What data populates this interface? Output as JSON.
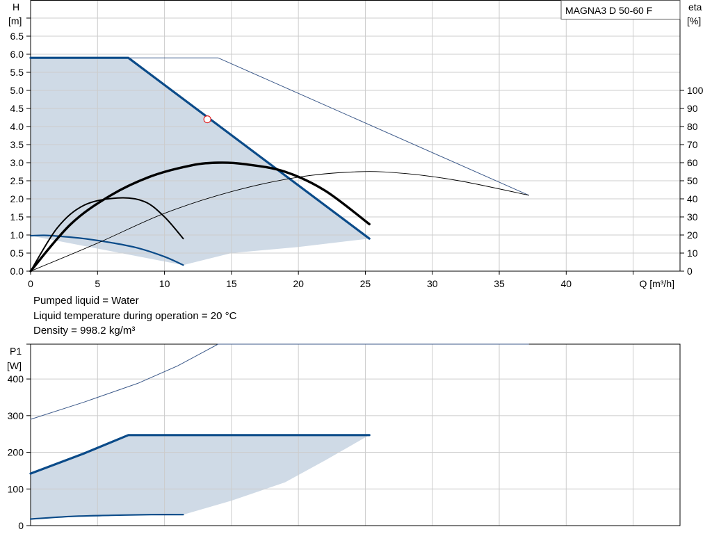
{
  "colors": {
    "region": "#cfdae6",
    "blue": "#0b4b89",
    "black": "#000000",
    "grid": "#cccccc",
    "thin": "#3d5a8a",
    "marker": "#e02020"
  },
  "chart_data": [
    {
      "type": "line",
      "title": "MAGNA3 D 50-60 F",
      "xlabel": "Q [m³/h]",
      "ylabel_lines": [
        "H",
        "[m]"
      ],
      "y2label_lines": [
        "eta",
        "[%]"
      ],
      "xlim": [
        0,
        48.5
      ],
      "ylim": [
        0,
        7.5
      ],
      "y2lim": [
        0,
        150
      ],
      "xticks": [
        0,
        5,
        10,
        15,
        20,
        25,
        30,
        35,
        40
      ],
      "yticks": [
        0.0,
        0.5,
        1.0,
        1.5,
        2.0,
        2.5,
        3.0,
        3.5,
        4.0,
        4.5,
        5.0,
        5.5,
        6.0,
        6.5
      ],
      "y2ticks": [
        0,
        10,
        20,
        30,
        40,
        50,
        60,
        70,
        80,
        90,
        100
      ],
      "grid": true,
      "region": {
        "name": "operating range",
        "upper": [
          [
            0,
            5.9
          ],
          [
            7.3,
            5.9
          ],
          [
            25.3,
            0.9
          ]
        ],
        "lower": [
          [
            25.3,
            0.9
          ],
          [
            20,
            0.67
          ],
          [
            15,
            0.5
          ],
          [
            11.4,
            0.17
          ]
        ],
        "left": [
          [
            0,
            0.98
          ]
        ]
      },
      "series": [
        {
          "axis": "y",
          "style": "blue-bold",
          "points": [
            [
              0,
              5.9
            ],
            [
              7.3,
              5.9
            ],
            [
              25.3,
              0.9
            ]
          ]
        },
        {
          "axis": "y",
          "style": "blue",
          "points": [
            [
              0,
              0.98
            ],
            [
              1,
              0.99
            ],
            [
              2,
              0.97
            ],
            [
              4,
              0.9
            ],
            [
              6,
              0.79
            ],
            [
              8,
              0.64
            ],
            [
              10,
              0.4
            ],
            [
              11.4,
              0.17
            ]
          ]
        },
        {
          "axis": "y",
          "style": "thin",
          "points": [
            [
              7.3,
              5.9
            ],
            [
              14,
              5.9
            ],
            [
              37.2,
              2.1
            ]
          ]
        },
        {
          "axis": "y2",
          "style": "black-bold",
          "points": [
            [
              0,
              0
            ],
            [
              3,
              26
            ],
            [
              6,
              42
            ],
            [
              9,
              52.5
            ],
            [
              12,
              58.5
            ],
            [
              14,
              60
            ],
            [
              16,
              59.2
            ],
            [
              19,
              55
            ],
            [
              22,
              44.5
            ],
            [
              25.3,
              26
            ]
          ]
        },
        {
          "axis": "y2",
          "style": "black",
          "points": [
            [
              0,
              0
            ],
            [
              2,
              24
            ],
            [
              4,
              36.5
            ],
            [
              6.5,
              40.5
            ],
            [
              8.5,
              38.5
            ],
            [
              10,
              30
            ],
            [
              11.4,
              18
            ]
          ]
        },
        {
          "axis": "y2",
          "style": "black-thin",
          "points": [
            [
              0,
              0
            ],
            [
              5,
              15.5
            ],
            [
              10,
              32
            ],
            [
              15,
              44
            ],
            [
              20,
              52
            ],
            [
              24.5,
              55
            ],
            [
              28,
              54
            ],
            [
              32,
              50
            ],
            [
              37.2,
              42
            ]
          ]
        }
      ],
      "operating_point": {
        "x": 13.2,
        "y": 4.2
      }
    },
    {
      "type": "line",
      "ylabel_lines": [
        "P1",
        "[W]"
      ],
      "xlim": [
        0,
        48.5
      ],
      "ylim": [
        0,
        495
      ],
      "yticks": [
        0,
        100,
        200,
        300,
        400
      ],
      "grid": true,
      "region": {
        "upper": [
          [
            0,
            142
          ],
          [
            7.3,
            247
          ],
          [
            25.3,
            247
          ]
        ],
        "lower": [
          [
            25.3,
            247
          ],
          [
            22,
            178
          ],
          [
            19,
            118
          ],
          [
            15,
            68
          ],
          [
            11.4,
            30
          ]
        ]
      },
      "series": [
        {
          "style": "blue-bold",
          "points": [
            [
              0,
              142
            ],
            [
              4,
              197
            ],
            [
              7.3,
              247
            ],
            [
              25.3,
              247
            ]
          ]
        },
        {
          "style": "blue",
          "points": [
            [
              0,
              18
            ],
            [
              3,
              25
            ],
            [
              6,
              28
            ],
            [
              9,
              30
            ],
            [
              11.4,
              30
            ]
          ]
        },
        {
          "style": "thin",
          "points": [
            [
              0,
              290
            ],
            [
              4,
              337
            ],
            [
              8,
              388
            ],
            [
              11,
              436
            ],
            [
              14,
              495
            ],
            [
              37.2,
              495
            ]
          ]
        }
      ]
    }
  ],
  "info": {
    "line1": "Pumped liquid = Water",
    "line2": "Liquid temperature during operation = 20 °C",
    "line3": "Density = 998.2 kg/m³"
  }
}
